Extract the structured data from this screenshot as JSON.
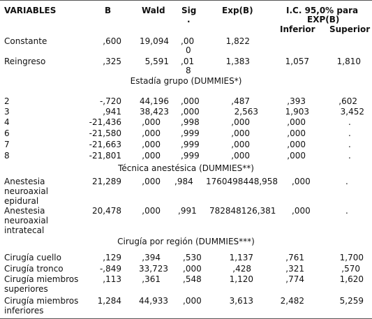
{
  "header": {
    "variables": "VARIABLES",
    "b": "B",
    "wald": "Wald",
    "sig_1": "Sig",
    "sig_2": ".",
    "expb": "Exp(B)",
    "ic_1": "I.C. 95,0% para",
    "ic_2": "EXP(B)",
    "inferior": "Inferior",
    "superior": "Superior"
  },
  "rows": {
    "constante": {
      "label": "Constante",
      "b": ",600",
      "wald": "19,094",
      "sig_1": ",00",
      "sig_2": "0",
      "expb": "1,822",
      "inf": "",
      "sup": ""
    },
    "reingreso": {
      "label": "Reingreso",
      "b": ",325",
      "wald": "5,591",
      "sig_1": ",01",
      "sig_2": "8",
      "expb": "1,383",
      "inf": "1,057",
      "sup": "1,810"
    }
  },
  "sections": {
    "estadia": "Estadía grupo (DUMMIES*)",
    "tecnica": "Técnica  anestésica (DUMMIES**)",
    "cirugia": "Cirugía por región  (DUMMIES***)"
  },
  "estadia_rows": [
    {
      "label": "2",
      "b": "-,720",
      "wald": "44,196",
      "sig": ",000",
      "expb": ",487",
      "inf": ",393",
      "sup": ",602"
    },
    {
      "label": "3",
      "b": ",941",
      "wald": "38,423",
      "sig": ",000",
      "expb": "2,563",
      "inf": "1,903",
      "sup": "3,452"
    },
    {
      "label": "4",
      "b": "-21,436",
      "wald": ",000",
      "sig": ",998",
      "expb": ",000",
      "inf": ",000",
      "sup": "."
    },
    {
      "label": "6",
      "b": "-21,580",
      "wald": ",000",
      "sig": ",999",
      "expb": ",000",
      "inf": ",000",
      "sup": "."
    },
    {
      "label": "7",
      "b": "-21,663",
      "wald": ",000",
      "sig": ",999",
      "expb": ",000",
      "inf": ",000",
      "sup": "."
    },
    {
      "label": "8",
      "b": "-21,801",
      "wald": ",000",
      "sig": ",999",
      "expb": ",000",
      "inf": ",000",
      "sup": "."
    }
  ],
  "tecnica_rows": [
    {
      "label_1": "Anestesia",
      "label_2": "neuroaxial",
      "label_3": "epidural",
      "b": "21,289",
      "wald": ",000",
      "sig": ",984",
      "expb": "1760498448,958",
      "inf": ",000",
      "sup": "."
    },
    {
      "label_1": "Anestesia",
      "label_2": "neuroaxial",
      "label_3": "intratecal",
      "b": "20,478",
      "wald": ",000",
      "sig": ",991",
      "expb": "782848126,381",
      "inf": ",000",
      "sup": "."
    }
  ],
  "cirugia_rows": [
    {
      "label_1": "Cirugía cuello",
      "label_2": "",
      "b": ",129",
      "wald": ",394",
      "sig": ",530",
      "expb": "1,137",
      "inf": ",761",
      "sup": "1,700"
    },
    {
      "label_1": "Cirugía tronco",
      "label_2": "",
      "b": "-,849",
      "wald": "33,723",
      "sig": ",000",
      "expb": ",428",
      "inf": ",321",
      "sup": ",570"
    },
    {
      "label_1": "Cirugía miembros",
      "label_2": "superiores",
      "b": ",113",
      "wald": ",361",
      "sig": ",548",
      "expb": "1,120",
      "inf": ",774",
      "sup": "1,620"
    },
    {
      "label_1": "Cirugía miembros",
      "label_2": "inferiores",
      "b": "1,284",
      "wald": "44,933",
      "sig": ",000",
      "expb": "3,613",
      "inf": "2,482",
      "sup": "5,259"
    }
  ]
}
